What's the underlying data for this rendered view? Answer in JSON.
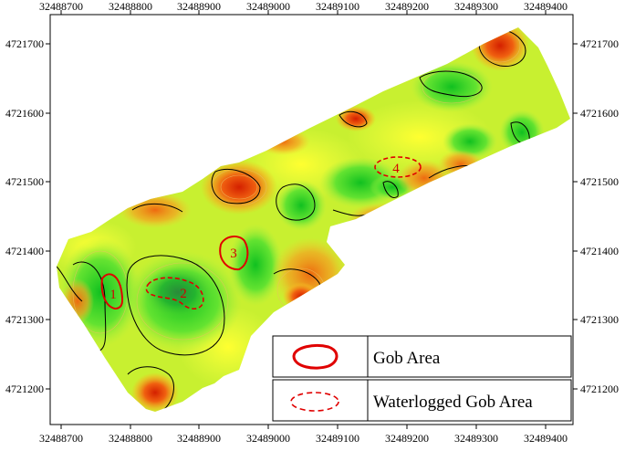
{
  "map": {
    "x_ticks": [
      "32488700",
      "32488800",
      "32488900",
      "32489000",
      "32489100",
      "32489200",
      "32489300",
      "32489400"
    ],
    "y_ticks": [
      "4721700",
      "4721600",
      "4721500",
      "4721400",
      "4721300",
      "4721200"
    ],
    "x_range": [
      32488690,
      32489440
    ],
    "y_range": [
      4721140,
      4721750
    ],
    "zones": [
      {
        "id": "1",
        "type": "gob_area"
      },
      {
        "id": "2",
        "type": "waterlogged_gob_area"
      },
      {
        "id": "3",
        "type": "gob_area"
      },
      {
        "id": "4",
        "type": "waterlogged_gob_area"
      }
    ],
    "colors": {
      "low": "#00c000",
      "mid": "#ffff00",
      "high": "#e03000",
      "gob_outline": "#e00000"
    }
  },
  "legend": {
    "gob_area": "Gob Area",
    "waterlogged_gob_area": "Waterlogged Gob Area"
  }
}
